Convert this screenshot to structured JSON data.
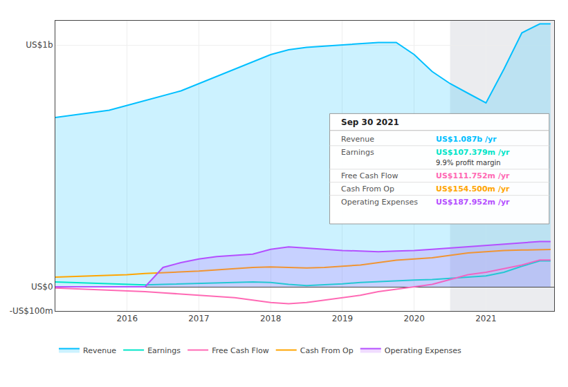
{
  "chart_data": {
    "type": "line",
    "x": [
      2015,
      2015.25,
      2015.5,
      2015.75,
      2016,
      2016.25,
      2016.5,
      2016.75,
      2017,
      2017.25,
      2017.5,
      2017.75,
      2018,
      2018.25,
      2018.5,
      2018.75,
      2019,
      2019.25,
      2019.5,
      2019.75,
      2020,
      2020.25,
      2020.5,
      2020.75,
      2021,
      2021.25,
      2021.5,
      2021.75,
      2021.9
    ],
    "xlim": [
      2015,
      2021.95
    ],
    "xticks": [
      2016,
      2017,
      2018,
      2019,
      2020,
      2021
    ],
    "ylim": [
      -100,
      1100
    ],
    "yticks": [
      {
        "value": -100,
        "label": "-US$100m"
      },
      {
        "value": 0,
        "label": "US$0"
      },
      {
        "value": 1000,
        "label": "US$1b"
      }
    ],
    "grid": true,
    "legend": "lower left",
    "highlight": [
      2020.5,
      2021.95
    ],
    "series": [
      {
        "name": "Revenue",
        "color": "#00bfff",
        "type": "area",
        "values": [
          700,
          710,
          720,
          730,
          750,
          770,
          790,
          810,
          840,
          870,
          900,
          930,
          960,
          980,
          990,
          995,
          1000,
          1005,
          1010,
          1010,
          960,
          890,
          840,
          800,
          760,
          900,
          1050,
          1087,
          1087
        ]
      },
      {
        "name": "Earnings",
        "color": "#00e5c8",
        "type": "line",
        "values": [
          20,
          18,
          15,
          12,
          10,
          8,
          10,
          12,
          14,
          16,
          18,
          20,
          18,
          10,
          5,
          8,
          12,
          18,
          22,
          25,
          28,
          30,
          35,
          40,
          45,
          60,
          85,
          107,
          107
        ]
      },
      {
        "name": "Free Cash Flow",
        "color": "#ff69b4",
        "type": "line",
        "values": [
          -5,
          -8,
          -10,
          -12,
          -15,
          -20,
          -25,
          -30,
          -35,
          -40,
          -45,
          -55,
          -65,
          -70,
          -65,
          -55,
          -45,
          -35,
          -20,
          -10,
          0,
          10,
          30,
          50,
          60,
          75,
          90,
          111,
          111
        ]
      },
      {
        "name": "Cash From Op",
        "color": "#ffa500",
        "type": "line",
        "values": [
          40,
          42,
          45,
          48,
          50,
          55,
          58,
          62,
          65,
          70,
          75,
          80,
          82,
          80,
          78,
          80,
          85,
          90,
          100,
          110,
          115,
          120,
          130,
          140,
          145,
          150,
          152,
          154,
          154
        ]
      },
      {
        "name": "Operating Expenses",
        "color": "#b44fff",
        "type": "area",
        "values": [
          0,
          0,
          0,
          0,
          0,
          0,
          80,
          100,
          115,
          125,
          130,
          135,
          155,
          165,
          160,
          155,
          150,
          148,
          145,
          148,
          150,
          155,
          160,
          165,
          170,
          175,
          182,
          187,
          187
        ]
      }
    ],
    "annotations": {
      "title": "Sep 30 2021",
      "rows": [
        {
          "label": "Revenue",
          "value": "US$1.087b /yr",
          "color": "#00bfff"
        },
        {
          "label": "Earnings",
          "value": "US$107.379m /yr",
          "color": "#00e5c8",
          "sub": "9.9% profit margin"
        },
        {
          "label": "Free Cash Flow",
          "value": "US$111.752m /yr",
          "color": "#ff69b4"
        },
        {
          "label": "Cash From Op",
          "value": "US$154.500m /yr",
          "color": "#ffa500"
        },
        {
          "label": "Operating Expenses",
          "value": "US$187.952m /yr",
          "color": "#b44fff"
        }
      ]
    }
  }
}
